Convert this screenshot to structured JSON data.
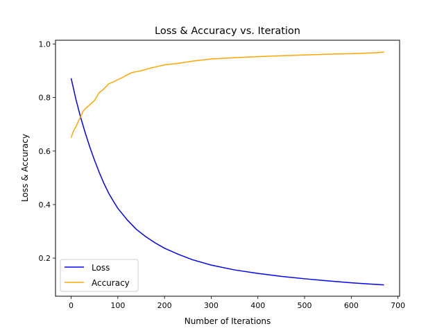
{
  "chart_data": {
    "type": "line",
    "title": "Loss & Accuracy vs. Iteration",
    "xlabel": "Number of Iterations",
    "ylabel": "Loss & Accuracy",
    "xlim": [
      -33.5,
      703.5
    ],
    "ylim": [
      0.0577,
      1.0141
    ],
    "xticks": [
      0,
      100,
      200,
      300,
      400,
      500,
      600,
      700
    ],
    "yticks": [
      0.2,
      0.4,
      0.6,
      0.8,
      1.0
    ],
    "xtick_labels": [
      "0",
      "100",
      "200",
      "300",
      "400",
      "500",
      "600",
      "700"
    ],
    "ytick_labels": [
      "0.2",
      "0.4",
      "0.6",
      "0.8",
      "1.0"
    ],
    "grid": false,
    "legend": {
      "position": "lower-left"
    },
    "series": [
      {
        "name": "Loss",
        "color": "#0000ff",
        "x": [
          0,
          10,
          20,
          30,
          40,
          50,
          60,
          70,
          80,
          90,
          100,
          120,
          140,
          160,
          180,
          200,
          230,
          260,
          300,
          350,
          400,
          450,
          500,
          550,
          600,
          650,
          670
        ],
        "y": [
          0.872,
          0.795,
          0.728,
          0.669,
          0.615,
          0.566,
          0.521,
          0.48,
          0.444,
          0.414,
          0.386,
          0.343,
          0.307,
          0.28,
          0.257,
          0.237,
          0.214,
          0.194,
          0.174,
          0.156,
          0.143,
          0.132,
          0.123,
          0.115,
          0.108,
          0.102,
          0.1
        ]
      },
      {
        "name": "Accuracy",
        "color": "#ffa500",
        "x": [
          0,
          5,
          10,
          15,
          20,
          25,
          30,
          40,
          50,
          60,
          70,
          80,
          90,
          100,
          110,
          120,
          130,
          140,
          150,
          170,
          190,
          200,
          230,
          260,
          300,
          350,
          400,
          450,
          500,
          550,
          600,
          650,
          670
        ],
        "y": [
          0.65,
          0.675,
          0.69,
          0.71,
          0.727,
          0.747,
          0.758,
          0.773,
          0.789,
          0.818,
          0.832,
          0.851,
          0.858,
          0.867,
          0.875,
          0.885,
          0.893,
          0.897,
          0.9,
          0.91,
          0.918,
          0.922,
          0.928,
          0.936,
          0.944,
          0.949,
          0.953,
          0.956,
          0.959,
          0.962,
          0.964,
          0.967,
          0.97
        ]
      }
    ]
  }
}
